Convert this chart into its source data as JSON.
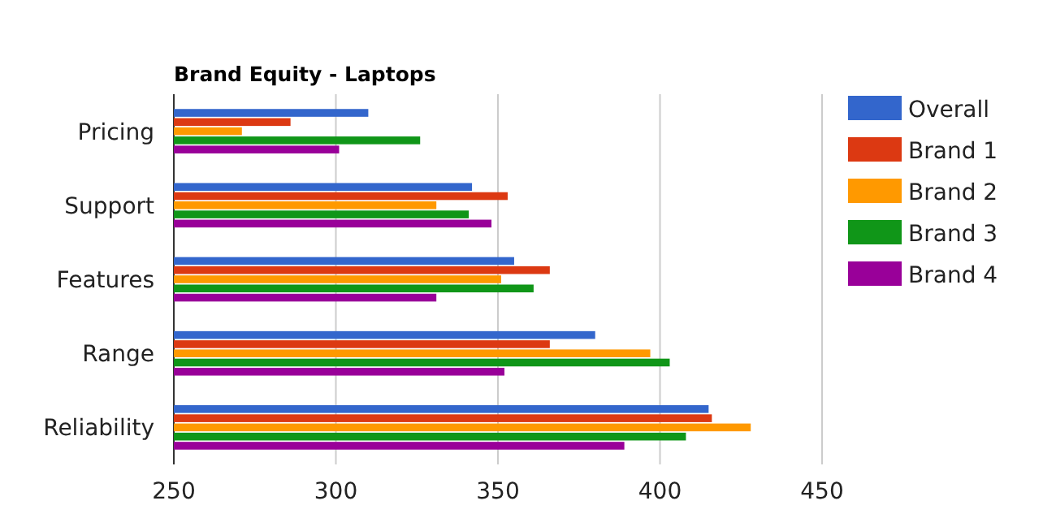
{
  "chart_data": {
    "type": "bar",
    "orientation": "horizontal",
    "title": "Brand Equity - Laptops",
    "categories": [
      "Pricing",
      "Support",
      "Features",
      "Range",
      "Reliability"
    ],
    "series": [
      {
        "name": "Overall",
        "color": "#3366cc",
        "values": [
          310,
          342,
          355,
          380,
          415
        ]
      },
      {
        "name": "Brand 1",
        "color": "#dc3912",
        "values": [
          286,
          353,
          366,
          366,
          416
        ]
      },
      {
        "name": "Brand 2",
        "color": "#ff9900",
        "values": [
          271,
          331,
          351,
          397,
          428
        ]
      },
      {
        "name": "Brand 3",
        "color": "#109618",
        "values": [
          326,
          341,
          361,
          403,
          408
        ]
      },
      {
        "name": "Brand 4",
        "color": "#990099",
        "values": [
          301,
          348,
          331,
          352,
          389
        ]
      }
    ],
    "xlim": [
      250,
      450
    ],
    "xticks": [
      250,
      300,
      350,
      400,
      450
    ],
    "grid": "x",
    "legend": "right"
  }
}
